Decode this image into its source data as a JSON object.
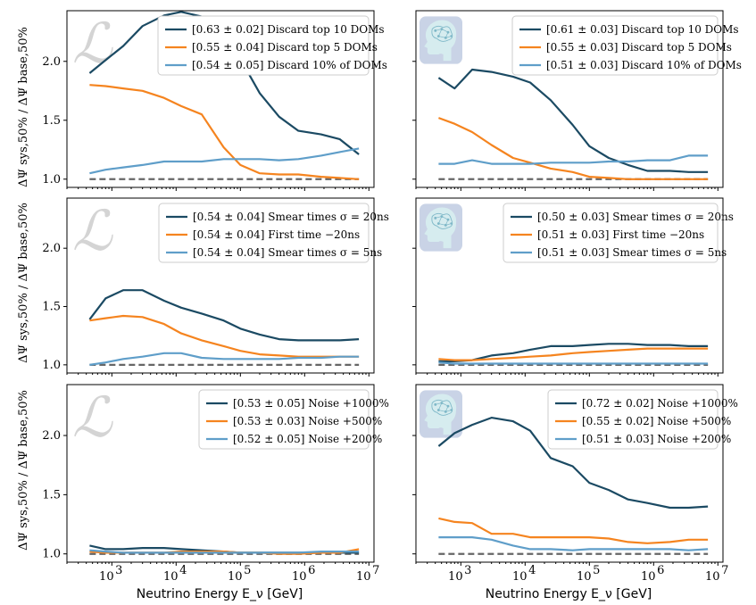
{
  "figure": {
    "xlabel": "Neutrino Energy E_ν [GeV]",
    "ylabel": "ΔΨ sys,50% / ΔΨ base,50%",
    "panel_icons": [
      "likelihood-script-L-icon",
      "brain-head-icon"
    ]
  },
  "colors": {
    "dark": "#1b4a63",
    "orange": "#f5841f",
    "light": "#5f9ec9",
    "baseline": "#666666"
  },
  "chart_data": [
    {
      "type": "line",
      "row": 0,
      "col": 0,
      "icon": "likelihood-script-L-icon",
      "xscale": "log",
      "xlim": [
        200,
        12000000
      ],
      "ylim": [
        0.93,
        2.43
      ],
      "yticks": [
        1.0,
        1.5,
        2.0
      ],
      "baseline": 1.0,
      "x": [
        450,
        800,
        1500,
        3000,
        6500,
        12000,
        25000,
        55000,
        100000,
        200000,
        400000,
        800000,
        1800000,
        3500000,
        7000000
      ],
      "series": [
        {
          "name": "[0.63 ± 0.02] Discard top 10 DOMs",
          "color": "dark",
          "values": [
            1.9,
            2.01,
            2.13,
            2.3,
            2.39,
            2.42,
            2.38,
            2.25,
            2.02,
            1.73,
            1.53,
            1.41,
            1.38,
            1.34,
            1.21
          ]
        },
        {
          "name": "[0.55 ± 0.04] Discard top 5 DOMs",
          "color": "orange",
          "values": [
            1.8,
            1.79,
            1.77,
            1.75,
            1.69,
            1.62,
            1.55,
            1.27,
            1.12,
            1.05,
            1.04,
            1.04,
            1.02,
            1.01,
            1.0
          ]
        },
        {
          "name": "[0.54 ± 0.05] Discard 10% of DOMs",
          "color": "light",
          "values": [
            1.05,
            1.08,
            1.1,
            1.12,
            1.15,
            1.15,
            1.15,
            1.17,
            1.17,
            1.17,
            1.16,
            1.17,
            1.2,
            1.23,
            1.26
          ]
        }
      ]
    },
    {
      "type": "line",
      "row": 0,
      "col": 1,
      "icon": "brain-head-icon",
      "xscale": "log",
      "xlim": [
        200,
        12000000
      ],
      "ylim": [
        0.93,
        2.43
      ],
      "yticks": [
        1.0,
        1.5,
        2.0
      ],
      "baseline": 1.0,
      "x": [
        450,
        800,
        1500,
        3000,
        6500,
        12000,
        25000,
        55000,
        100000,
        200000,
        400000,
        800000,
        1800000,
        3500000,
        7000000
      ],
      "series": [
        {
          "name": "[0.61 ± 0.03] Discard top 10 DOMs",
          "color": "dark",
          "values": [
            1.86,
            1.77,
            1.93,
            1.91,
            1.87,
            1.82,
            1.67,
            1.46,
            1.28,
            1.18,
            1.12,
            1.07,
            1.07,
            1.06,
            1.06
          ]
        },
        {
          "name": "[0.55 ± 0.03] Discard top 5 DOMs",
          "color": "orange",
          "values": [
            1.52,
            1.47,
            1.4,
            1.29,
            1.18,
            1.14,
            1.09,
            1.06,
            1.02,
            1.01,
            1.0,
            1.0,
            1.0,
            1.0,
            1.0
          ]
        },
        {
          "name": "[0.51 ± 0.03] Discard 10% of DOMs",
          "color": "light",
          "values": [
            1.13,
            1.13,
            1.16,
            1.13,
            1.13,
            1.13,
            1.14,
            1.14,
            1.14,
            1.15,
            1.15,
            1.16,
            1.16,
            1.2,
            1.2
          ]
        }
      ]
    },
    {
      "type": "line",
      "row": 1,
      "col": 0,
      "icon": "likelihood-script-L-icon",
      "xscale": "log",
      "xlim": [
        200,
        12000000
      ],
      "ylim": [
        0.93,
        2.43
      ],
      "yticks": [
        1.0,
        1.5,
        2.0
      ],
      "baseline": 1.0,
      "x": [
        450,
        800,
        1500,
        3000,
        6500,
        12000,
        25000,
        55000,
        100000,
        200000,
        400000,
        800000,
        1800000,
        3500000,
        7000000
      ],
      "series": [
        {
          "name": "[0.54 ± 0.04] Smear times σ = 20ns",
          "color": "dark",
          "values": [
            1.39,
            1.57,
            1.64,
            1.64,
            1.55,
            1.49,
            1.44,
            1.38,
            1.31,
            1.26,
            1.22,
            1.21,
            1.21,
            1.21,
            1.22
          ]
        },
        {
          "name": "[0.54 ± 0.04] First time −20ns",
          "color": "orange",
          "values": [
            1.38,
            1.4,
            1.42,
            1.41,
            1.35,
            1.27,
            1.21,
            1.16,
            1.12,
            1.09,
            1.08,
            1.07,
            1.07,
            1.07,
            1.07
          ]
        },
        {
          "name": "[0.54 ± 0.04] Smear times σ = 5ns",
          "color": "light",
          "values": [
            1.0,
            1.02,
            1.05,
            1.07,
            1.1,
            1.1,
            1.06,
            1.05,
            1.05,
            1.05,
            1.05,
            1.06,
            1.06,
            1.07,
            1.07
          ]
        }
      ]
    },
    {
      "type": "line",
      "row": 1,
      "col": 1,
      "icon": "brain-head-icon",
      "xscale": "log",
      "xlim": [
        200,
        12000000
      ],
      "ylim": [
        0.93,
        2.43
      ],
      "yticks": [
        1.0,
        1.5,
        2.0
      ],
      "baseline": 1.0,
      "x": [
        450,
        800,
        1500,
        3000,
        6500,
        12000,
        25000,
        55000,
        100000,
        200000,
        400000,
        800000,
        1800000,
        3500000,
        7000000
      ],
      "series": [
        {
          "name": "[0.50 ± 0.03] Smear times σ = 20ns",
          "color": "dark",
          "values": [
            1.03,
            1.03,
            1.04,
            1.08,
            1.1,
            1.13,
            1.16,
            1.16,
            1.17,
            1.18,
            1.18,
            1.17,
            1.17,
            1.16,
            1.16
          ]
        },
        {
          "name": "[0.51 ± 0.03] First time −20ns",
          "color": "orange",
          "values": [
            1.05,
            1.04,
            1.04,
            1.05,
            1.06,
            1.07,
            1.08,
            1.1,
            1.11,
            1.12,
            1.13,
            1.14,
            1.14,
            1.14,
            1.14
          ]
        },
        {
          "name": "[0.51 ± 0.03] Smear times σ = 5ns",
          "color": "light",
          "values": [
            1.02,
            1.01,
            1.01,
            1.01,
            1.01,
            1.01,
            1.01,
            1.01,
            1.01,
            1.01,
            1.01,
            1.01,
            1.01,
            1.01,
            1.01
          ]
        }
      ]
    },
    {
      "type": "line",
      "row": 2,
      "col": 0,
      "icon": "likelihood-script-L-icon",
      "xscale": "log",
      "xlim": [
        200,
        12000000
      ],
      "ylim": [
        0.93,
        2.43
      ],
      "yticks": [
        1.0,
        1.5,
        2.0
      ],
      "baseline": 1.0,
      "x": [
        450,
        800,
        1500,
        3000,
        6500,
        12000,
        25000,
        55000,
        100000,
        200000,
        400000,
        800000,
        1800000,
        3500000,
        7000000
      ],
      "series": [
        {
          "name": "[0.53 ± 0.05] Noise +1000%",
          "color": "dark",
          "values": [
            1.07,
            1.04,
            1.04,
            1.05,
            1.05,
            1.04,
            1.03,
            1.02,
            1.01,
            1.01,
            1.01,
            1.01,
            1.01,
            1.01,
            1.01
          ]
        },
        {
          "name": "[0.53 ± 0.03] Noise +500%",
          "color": "orange",
          "values": [
            1.02,
            1.01,
            1.01,
            1.01,
            1.01,
            1.02,
            1.02,
            1.02,
            1.01,
            1.01,
            1.0,
            1.0,
            1.01,
            1.01,
            1.04
          ]
        },
        {
          "name": "[0.52 ± 0.05] Noise +200%",
          "color": "light",
          "values": [
            1.03,
            1.02,
            1.01,
            1.01,
            1.01,
            1.01,
            1.01,
            1.01,
            1.01,
            1.01,
            1.01,
            1.01,
            1.02,
            1.02,
            1.02
          ]
        }
      ]
    },
    {
      "type": "line",
      "row": 2,
      "col": 1,
      "icon": "brain-head-icon",
      "xscale": "log",
      "xlim": [
        200,
        12000000
      ],
      "ylim": [
        0.93,
        2.43
      ],
      "yticks": [
        1.0,
        1.5,
        2.0
      ],
      "baseline": 1.0,
      "x": [
        450,
        800,
        1500,
        3000,
        6500,
        12000,
        25000,
        55000,
        100000,
        200000,
        400000,
        800000,
        1800000,
        3500000,
        7000000
      ],
      "series": [
        {
          "name": "[0.72 ± 0.02] Noise +1000%",
          "color": "dark",
          "values": [
            1.91,
            2.02,
            2.09,
            2.15,
            2.12,
            2.04,
            1.81,
            1.74,
            1.6,
            1.54,
            1.46,
            1.43,
            1.39,
            1.39,
            1.4
          ]
        },
        {
          "name": "[0.55 ± 0.02] Noise +500%",
          "color": "orange",
          "values": [
            1.3,
            1.27,
            1.26,
            1.17,
            1.17,
            1.14,
            1.14,
            1.14,
            1.14,
            1.13,
            1.1,
            1.09,
            1.1,
            1.12,
            1.12
          ]
        },
        {
          "name": "[0.51 ± 0.03] Noise +200%",
          "color": "light",
          "values": [
            1.14,
            1.14,
            1.14,
            1.12,
            1.07,
            1.04,
            1.04,
            1.03,
            1.04,
            1.04,
            1.04,
            1.04,
            1.04,
            1.03,
            1.04
          ]
        }
      ]
    }
  ],
  "xticks": [
    {
      "value": 1000,
      "base": "10",
      "exp": "3"
    },
    {
      "value": 10000,
      "base": "10",
      "exp": "4"
    },
    {
      "value": 100000,
      "base": "10",
      "exp": "5"
    },
    {
      "value": 1000000,
      "base": "10",
      "exp": "6"
    },
    {
      "value": 10000000,
      "base": "10",
      "exp": "7"
    }
  ]
}
